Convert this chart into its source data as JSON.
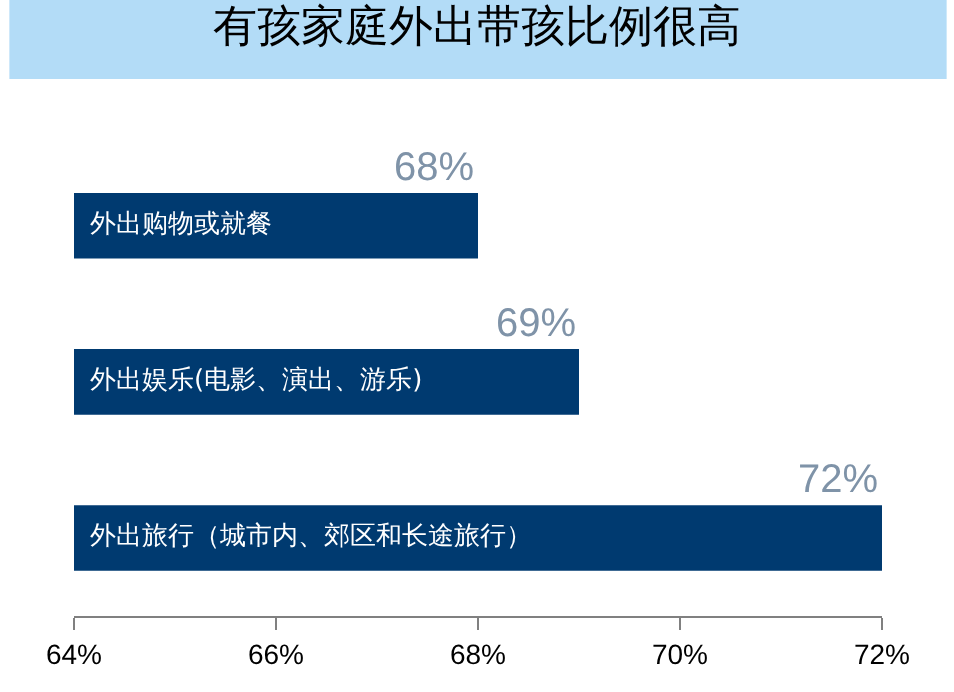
{
  "chart_data": {
    "type": "bar",
    "orientation": "horizontal",
    "title": "有孩家庭外出带孩比例很高",
    "categories": [
      "外出购物或就餐",
      "外出娱乐(电影、演出、游乐)",
      "外出旅行（城市内、郊区和长途旅行）"
    ],
    "values": [
      68,
      69,
      72
    ],
    "value_labels": [
      "68%",
      "69%",
      "72%"
    ],
    "color": "#003a70",
    "xlim": [
      64,
      72
    ],
    "xticks": [
      {
        "value": 64,
        "label": "64%"
      },
      {
        "value": 66,
        "label": "66%"
      },
      {
        "value": 68,
        "label": "68%"
      },
      {
        "value": 70,
        "label": "70%"
      },
      {
        "value": 72,
        "label": "72%"
      }
    ],
    "tick_labels": "x"
  }
}
